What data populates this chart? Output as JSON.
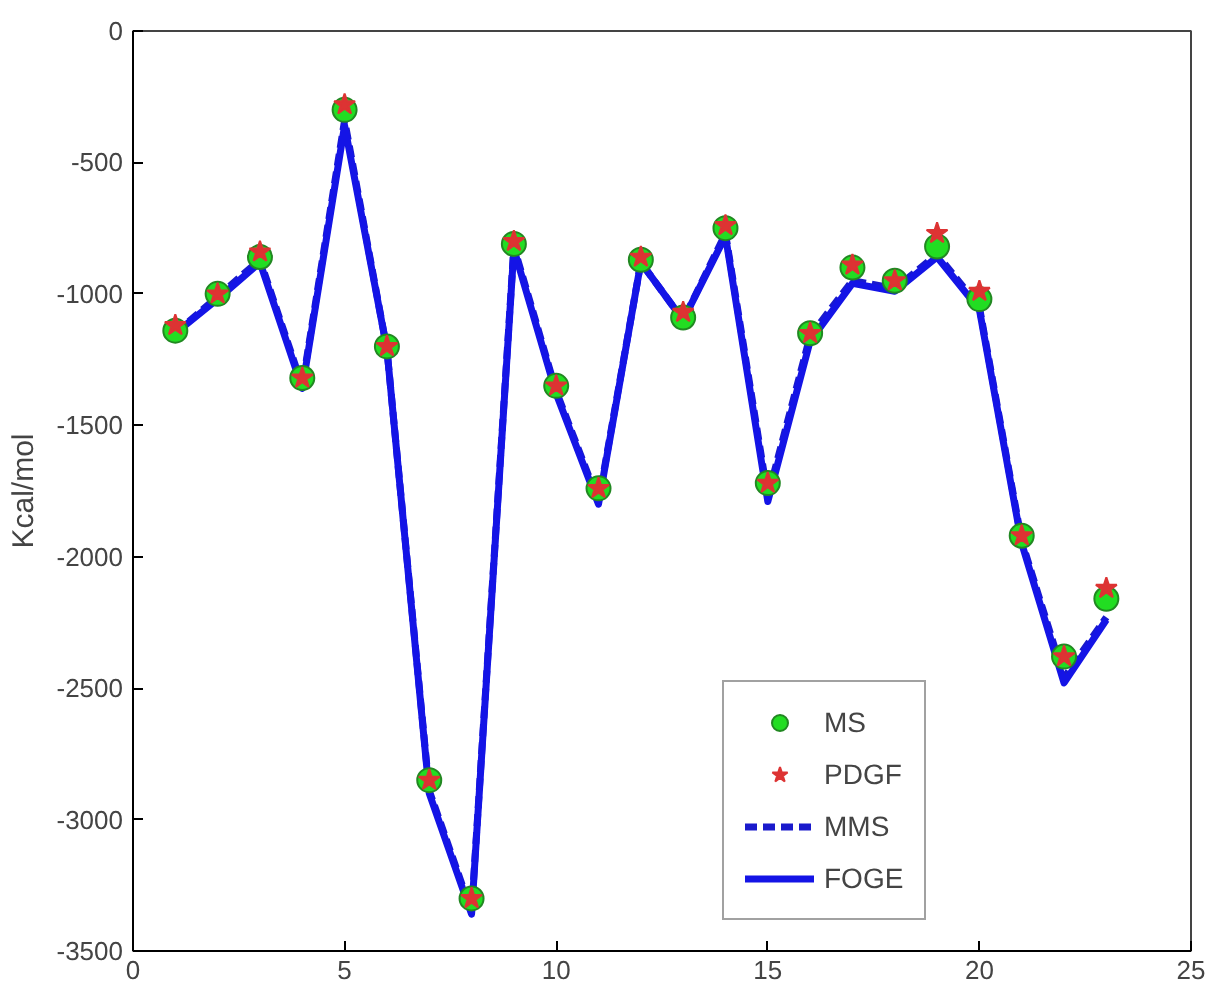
{
  "chart_data": {
    "type": "line",
    "ylabel": "Kcal/mol",
    "x": [
      1,
      2,
      3,
      4,
      5,
      6,
      7,
      8,
      9,
      10,
      11,
      12,
      13,
      14,
      15,
      16,
      17,
      18,
      19,
      20,
      21,
      22,
      23
    ],
    "xlim": [
      0,
      25
    ],
    "xticks": [
      0,
      5,
      10,
      15,
      20,
      25
    ],
    "ylim": [
      -3500,
      0
    ],
    "yticks": [
      -3500,
      -3000,
      -2500,
      -2000,
      -1500,
      -1000,
      -500,
      0
    ],
    "grid": false,
    "legend": "bottom right",
    "series": [
      {
        "name": "MS",
        "type": "scatter",
        "marker": "circle",
        "color": "#22dd22",
        "values": [
          -1140,
          -1000,
          -860,
          -1320,
          -300,
          -1200,
          -2850,
          -3300,
          -810,
          -1350,
          -1740,
          -870,
          -1090,
          -750,
          -1720,
          -1150,
          -900,
          -950,
          -820,
          -1020,
          -1920,
          -2380,
          -2160
        ]
      },
      {
        "name": "PDGF",
        "type": "scatter",
        "marker": "star",
        "color": "#dd3333",
        "values": [
          -1120,
          -1000,
          -840,
          -1320,
          -280,
          -1200,
          -2850,
          -3300,
          -800,
          -1350,
          -1740,
          -860,
          -1070,
          -740,
          -1720,
          -1150,
          -890,
          -950,
          -770,
          -990,
          -1920,
          -2380,
          -2120
        ]
      },
      {
        "name": "MMS",
        "line_style": "dashed",
        "color": "#1a1acc",
        "values": [
          -1150,
          -1010,
          -870,
          -1350,
          -340,
          -1210,
          -2890,
          -3350,
          -820,
          -1370,
          -1790,
          -880,
          -1100,
          -770,
          -1770,
          -1160,
          -950,
          -980,
          -850,
          -1050,
          -1940,
          -2460,
          -2230
        ]
      },
      {
        "name": "FOGE",
        "line_style": "solid",
        "color": "#1414e6",
        "values": [
          -1150,
          -1020,
          -880,
          -1360,
          -360,
          -1210,
          -2900,
          -3360,
          -830,
          -1380,
          -1800,
          -880,
          -1100,
          -780,
          -1790,
          -1180,
          -960,
          -990,
          -860,
          -1060,
          -1950,
          -2480,
          -2240
        ]
      }
    ]
  }
}
